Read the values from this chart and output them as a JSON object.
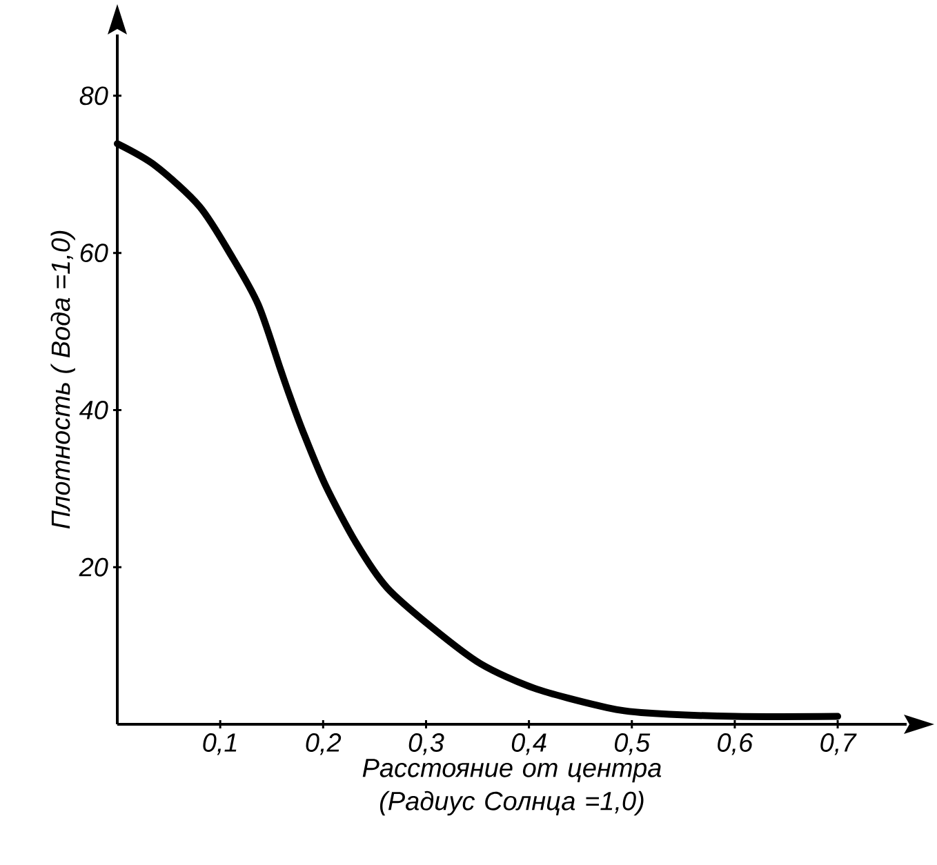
{
  "chart_data": {
    "type": "line",
    "xlabel": "Расстояние от центра (Радиус Солнца =1,0)",
    "ylabel": "Плотность ( Вода =1,0)",
    "xlim": [
      0,
      0.767
    ],
    "ylim": [
      0,
      87.8
    ],
    "xticks": [
      {
        "value": 0.1,
        "label": "0,1"
      },
      {
        "value": 0.2,
        "label": "0,2"
      },
      {
        "value": 0.3,
        "label": "0,3"
      },
      {
        "value": 0.4,
        "label": "0,4"
      },
      {
        "value": 0.5,
        "label": "0,5"
      },
      {
        "value": 0.6,
        "label": "0,6"
      },
      {
        "value": 0.7,
        "label": "0,7"
      }
    ],
    "yticks": [
      20,
      40,
      60,
      80
    ],
    "series": [
      {
        "color": "#000000",
        "x": [
          0,
          0.037,
          0.08,
          0.111,
          0.137,
          0.158,
          0.167,
          0.18,
          0.202,
          0.232,
          0.262,
          0.306,
          0.353,
          0.405,
          0.47,
          0.509,
          0.6,
          0.7
        ],
        "values": [
          73.9,
          71.1,
          65.9,
          59.6,
          53.4,
          45.4,
          42.0,
          37.4,
          30.5,
          23.1,
          17.4,
          12.3,
          7.7,
          4.6,
          2.3,
          1.5,
          1.0,
          1.0
        ]
      }
    ]
  }
}
